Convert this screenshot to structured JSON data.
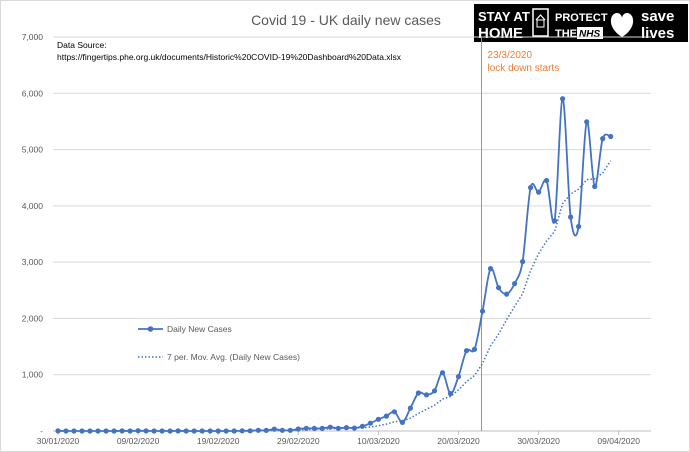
{
  "chart_data": {
    "type": "line",
    "title": "Covid 19 - UK daily new cases",
    "ylim": [
      0,
      7000
    ],
    "yticks": [
      "-",
      "1,000",
      "2,000",
      "3,000",
      "4,000",
      "5,000",
      "6,000",
      "7,000"
    ],
    "ytick_values": [
      0,
      1000,
      2000,
      3000,
      4000,
      5000,
      6000,
      7000
    ],
    "xticks": [
      "30/01/2020",
      "09/02/2020",
      "19/02/2020",
      "29/02/2020",
      "10/03/2020",
      "20/03/2020",
      "30/03/2020",
      "09/04/2020"
    ],
    "start_date": "30/01/2020",
    "grid": true,
    "legend_placement": "center-left",
    "series": [
      {
        "name": "Daily New Cases",
        "color": "#4472c4",
        "style": "solid-markers",
        "values": [
          2,
          0,
          0,
          0,
          0,
          0,
          0,
          0,
          1,
          0,
          5,
          1,
          0,
          0,
          0,
          1,
          0,
          0,
          0,
          0,
          0,
          0,
          0,
          4,
          4,
          13,
          11,
          33,
          13,
          13,
          35,
          48,
          46,
          47,
          67,
          48,
          61,
          52,
          83,
          138,
          208,
          265,
          342,
          152,
          407,
          676,
          643,
          714,
          1035,
          665,
          967,
          1427,
          1452,
          2129,
          2885,
          2546,
          2433,
          2619,
          3009,
          4324,
          4244,
          4450,
          3735,
          5903,
          3802,
          3634,
          5491,
          4344,
          5195,
          5233
        ],
        "moving_average": {
          "name": "7 per. Mov. Avg. (Daily New Cases)",
          "color": "#4472c4",
          "style": "dotted",
          "period": 7
        }
      }
    ],
    "source_note": {
      "line1": "Data Source:",
      "line2": "https://fingertips.phe.org.uk/documents/Historic%20COVID-19%20Dashboard%20Data.xlsx"
    },
    "annotation": {
      "date_label": "23/3/2020",
      "text": "lock down starts",
      "date": "23/03/2020",
      "color": "#ed7d31"
    }
  },
  "banner": {
    "stay_line1": "STAY AT",
    "stay_line2": "HOME",
    "protect_line1": "PROTECT",
    "protect_line2": "THE",
    "nhs": "NHS",
    "save_line1": "save",
    "save_line2": "lives",
    "icons": [
      "house-icon",
      "heart-icon"
    ]
  }
}
